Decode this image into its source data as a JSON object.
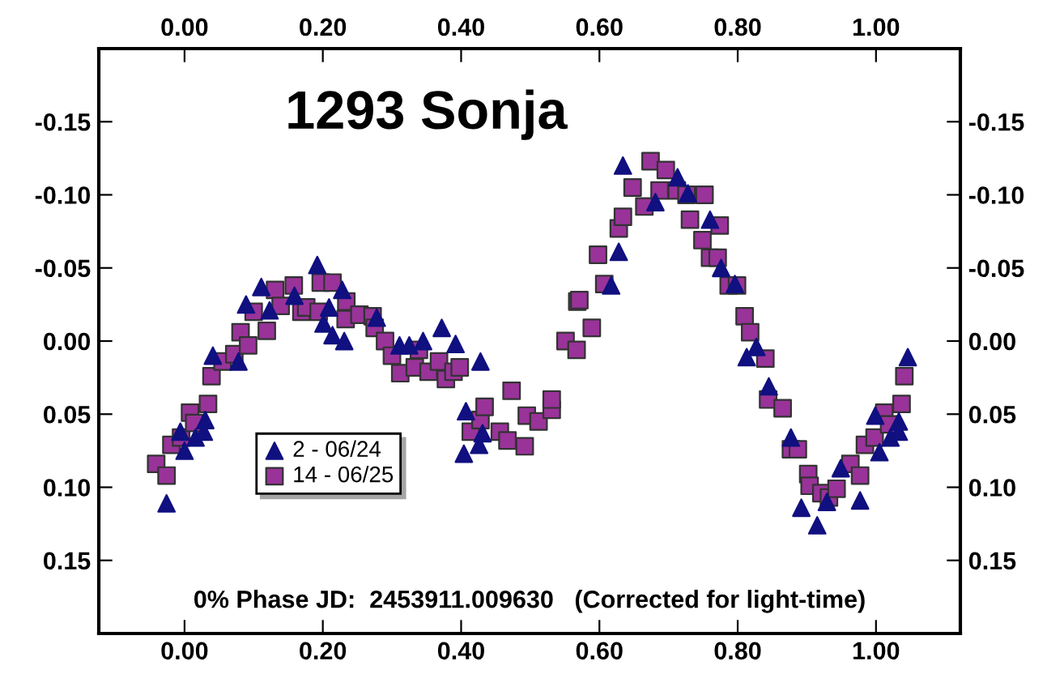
{
  "chart_data": {
    "type": "scatter",
    "title": "1293 Sonja",
    "annotations": [
      "0% Phase JD:  2453911.009630   (Corrected for light-time)"
    ],
    "xlim": [
      -0.124,
      1.122
    ],
    "ylim": [
      0.2,
      -0.2
    ],
    "xticks": [
      {
        "value": 0,
        "label": "0.00"
      },
      {
        "value": 0.2,
        "label": "0.20"
      },
      {
        "value": 0.4,
        "label": "0.40"
      },
      {
        "value": 0.6,
        "label": "0.60"
      },
      {
        "value": 0.8,
        "label": "0.80"
      },
      {
        "value": 1.0,
        "label": "1.00"
      }
    ],
    "x2lim": [
      -0.124,
      1.122
    ],
    "x2ticks": [
      {
        "value": 0,
        "label": "0.00"
      },
      {
        "value": 0.2,
        "label": "0.20"
      },
      {
        "value": 0.4,
        "label": "0.40"
      },
      {
        "value": 0.6,
        "label": "0.60"
      },
      {
        "value": 0.8,
        "label": "0.80"
      },
      {
        "value": 1.0,
        "label": "1.00"
      }
    ],
    "yticks": [
      {
        "value": -0.15,
        "label": "-0.15"
      },
      {
        "value": -0.1,
        "label": "-0.10"
      },
      {
        "value": -0.05,
        "label": "-0.05"
      },
      {
        "value": 0,
        "label": "0.00"
      },
      {
        "value": 0.05,
        "label": "0.05"
      },
      {
        "value": 0.1,
        "label": "0.10"
      },
      {
        "value": 0.15,
        "label": "0.15"
      }
    ],
    "y2lim": [
      0.2,
      -0.2
    ],
    "y2ticks": [
      {
        "value": -0.15,
        "label": "-0.15"
      },
      {
        "value": -0.1,
        "label": "-0.10"
      },
      {
        "value": -0.05,
        "label": "-0.05"
      },
      {
        "value": 0,
        "label": "0.00"
      },
      {
        "value": 0.05,
        "label": "0.05"
      },
      {
        "value": 0.1,
        "label": "0.10"
      },
      {
        "value": 0.15,
        "label": "0.15"
      }
    ],
    "grid": false,
    "legend": "bottom left",
    "series": [
      {
        "name": "2 - 06/24",
        "color": "#101080",
        "marker": "triangle",
        "x": [
          -0.026,
          0.0,
          -0.006,
          0.016,
          0.028,
          0.03,
          0.041,
          0.078,
          0.089,
          0.111,
          0.123,
          0.159,
          0.192,
          0.201,
          0.209,
          0.214,
          0.228,
          0.231,
          0.278,
          0.311,
          0.325,
          0.345,
          0.372,
          0.392,
          0.428,
          0.404,
          0.407,
          0.426,
          0.431,
          0.617,
          0.628,
          0.634,
          0.681,
          0.713,
          0.728,
          0.76,
          0.776,
          0.796,
          0.813,
          0.827,
          0.845,
          0.877,
          0.892,
          0.915,
          0.929,
          0.949,
          0.977,
          1.005,
          0.999,
          1.021,
          1.033,
          1.033,
          1.046
        ],
        "values": [
          0.111,
          0.075,
          0.062,
          0.066,
          0.062,
          0.054,
          0.01,
          0.014,
          -0.025,
          -0.037,
          -0.021,
          -0.031,
          -0.052,
          -0.012,
          -0.023,
          -0.004,
          -0.035,
          0.0,
          -0.016,
          0.003,
          0.003,
          0.0,
          -0.009,
          0.002,
          0.014,
          0.077,
          0.048,
          0.071,
          0.063,
          -0.038,
          -0.061,
          -0.12,
          -0.095,
          -0.112,
          -0.101,
          -0.083,
          -0.05,
          -0.039,
          0.011,
          0.004,
          0.031,
          0.066,
          0.114,
          0.126,
          0.11,
          0.087,
          0.109,
          0.076,
          0.051,
          0.066,
          0.062,
          0.055,
          0.011
        ]
      },
      {
        "name": "14 - 06/25",
        "color": "#993399",
        "marker": "square",
        "x": [
          -0.041,
          -0.026,
          -0.019,
          -0.005,
          0.008,
          0.014,
          0.034,
          0.039,
          0.055,
          0.072,
          0.081,
          0.092,
          0.1,
          0.119,
          0.131,
          0.139,
          0.158,
          0.169,
          0.176,
          0.194,
          0.197,
          0.214,
          0.234,
          0.233,
          0.253,
          0.272,
          0.275,
          0.29,
          0.3,
          0.312,
          0.333,
          0.339,
          0.353,
          0.368,
          0.378,
          0.389,
          0.398,
          0.414,
          0.428,
          0.434,
          0.456,
          0.467,
          0.473,
          0.492,
          0.495,
          0.512,
          0.531,
          0.531,
          0.551,
          0.567,
          0.568,
          0.571,
          0.589,
          0.607,
          0.598,
          0.628,
          0.634,
          0.648,
          0.665,
          0.674,
          0.687,
          0.696,
          0.712,
          0.726,
          0.731,
          0.752,
          0.749,
          0.774,
          0.76,
          0.771,
          0.787,
          0.799,
          0.81,
          0.818,
          0.84,
          0.844,
          0.865,
          0.877,
          0.887,
          0.902,
          0.904,
          0.921,
          0.932,
          0.943,
          0.963,
          0.977,
          0.984,
          0.998,
          1.012,
          1.019,
          1.037,
          1.041
        ],
        "values": [
          0.084,
          0.092,
          0.071,
          0.066,
          0.049,
          0.056,
          0.043,
          0.024,
          0.014,
          0.009,
          -0.006,
          0.003,
          -0.02,
          -0.007,
          -0.035,
          -0.024,
          -0.038,
          -0.02,
          -0.023,
          -0.02,
          -0.04,
          -0.04,
          -0.027,
          -0.015,
          -0.018,
          -0.017,
          -0.009,
          0.0,
          0.01,
          0.022,
          0.018,
          0.006,
          0.021,
          0.014,
          0.026,
          0.021,
          0.018,
          0.062,
          0.054,
          0.045,
          0.062,
          0.068,
          0.034,
          0.072,
          0.051,
          0.055,
          0.047,
          0.04,
          0.0,
          0.006,
          -0.027,
          -0.028,
          -0.009,
          -0.039,
          -0.059,
          -0.077,
          -0.085,
          -0.105,
          -0.092,
          -0.123,
          -0.103,
          -0.117,
          -0.103,
          -0.1,
          -0.083,
          -0.1,
          -0.069,
          -0.079,
          -0.057,
          -0.057,
          -0.038,
          -0.038,
          -0.017,
          -0.006,
          0.012,
          0.04,
          0.046,
          0.074,
          0.074,
          0.091,
          0.099,
          0.104,
          0.107,
          0.101,
          0.084,
          0.092,
          0.071,
          0.066,
          0.049,
          0.057,
          0.043,
          0.024
        ]
      }
    ]
  }
}
